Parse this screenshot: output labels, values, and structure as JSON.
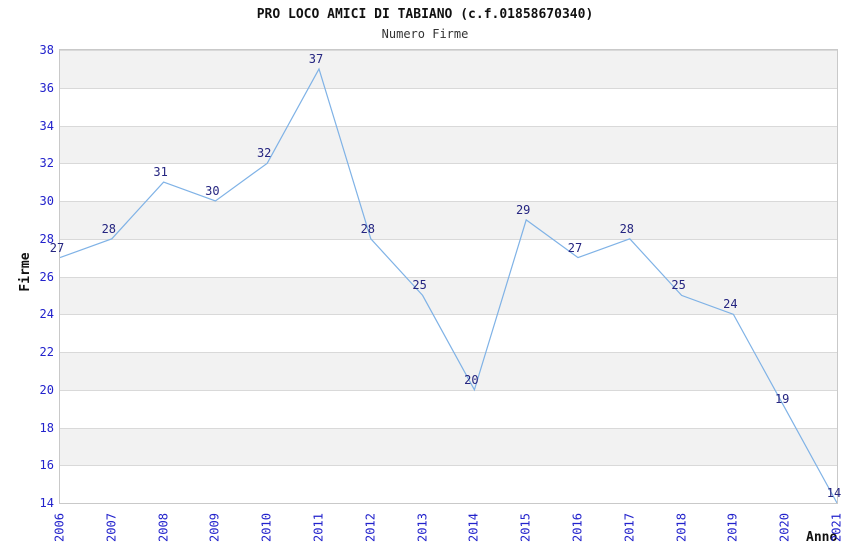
{
  "chart_data": {
    "type": "line",
    "title": "PRO LOCO AMICI DI TABIANO (c.f.01858670340)",
    "subtitle": "Numero Firme",
    "xlabel": "Anno",
    "ylabel": "Firme",
    "categories": [
      "2006",
      "2007",
      "2008",
      "2009",
      "2010",
      "2011",
      "2012",
      "2013",
      "2014",
      "2015",
      "2016",
      "2017",
      "2018",
      "2019",
      "2020",
      "2021"
    ],
    "values": [
      27,
      28,
      31,
      30,
      32,
      37,
      28,
      25,
      20,
      29,
      27,
      28,
      25,
      24,
      19,
      14
    ],
    "ylim": [
      14,
      38
    ],
    "ytick_step": 2,
    "yticks": [
      38,
      36,
      34,
      32,
      30,
      28,
      26,
      24,
      22,
      20,
      18,
      16,
      14
    ],
    "grid": "horizontal-alternating-bands",
    "legend_position": "none",
    "markers": "none",
    "data_labels": "above-points",
    "colors": {
      "line": "#7fb2e6",
      "tick_label": "#2222cc",
      "point_label": "#252580",
      "band_fill": "#f2f2f2",
      "band_alt_fill": "#ffffff",
      "gridline": "#d9d9d9",
      "plot_border": "#c9c9c9",
      "title": "#111111",
      "subtitle": "#333333",
      "axis_title": "#111111",
      "background": "#ffffff"
    }
  }
}
